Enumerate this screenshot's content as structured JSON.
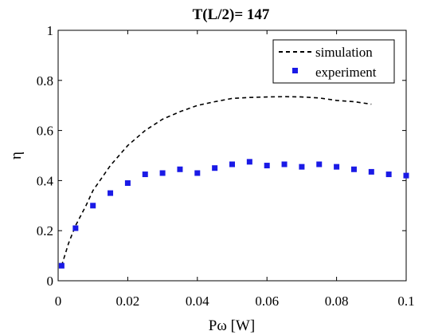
{
  "chart_data": {
    "type": "line",
    "title": "T(L/2)= 147",
    "xlabel": "Pω [W]",
    "ylabel": "η",
    "xlim": [
      0,
      0.1
    ],
    "ylim": [
      0,
      1
    ],
    "xticks": [
      "0",
      "0.02",
      "0.04",
      "0.06",
      "0.08",
      "0.1"
    ],
    "yticks": [
      "0",
      "0.2",
      "0.4",
      "0.6",
      "0.8",
      "1"
    ],
    "grid": false,
    "legend_position": "top-right",
    "series": [
      {
        "name": "simulation",
        "style": "dashed-line",
        "color": "#000000",
        "x": [
          0.001,
          0.003,
          0.005,
          0.008,
          0.01,
          0.015,
          0.02,
          0.025,
          0.03,
          0.035,
          0.04,
          0.045,
          0.05,
          0.055,
          0.06,
          0.065,
          0.07,
          0.075,
          0.08,
          0.085,
          0.09
        ],
        "y": [
          0.06,
          0.15,
          0.22,
          0.3,
          0.36,
          0.46,
          0.54,
          0.6,
          0.645,
          0.675,
          0.7,
          0.715,
          0.728,
          0.732,
          0.734,
          0.735,
          0.734,
          0.73,
          0.72,
          0.715,
          0.705
        ]
      },
      {
        "name": "experiment",
        "style": "markers",
        "color": "#1a1ae6",
        "x": [
          0.001,
          0.005,
          0.01,
          0.015,
          0.02,
          0.025,
          0.03,
          0.035,
          0.04,
          0.045,
          0.05,
          0.055,
          0.06,
          0.065,
          0.07,
          0.075,
          0.08,
          0.085,
          0.09,
          0.095,
          0.1
        ],
        "y": [
          0.06,
          0.21,
          0.3,
          0.35,
          0.39,
          0.425,
          0.43,
          0.445,
          0.43,
          0.45,
          0.465,
          0.475,
          0.46,
          0.465,
          0.455,
          0.465,
          0.455,
          0.445,
          0.435,
          0.425,
          0.42
        ]
      }
    ]
  }
}
